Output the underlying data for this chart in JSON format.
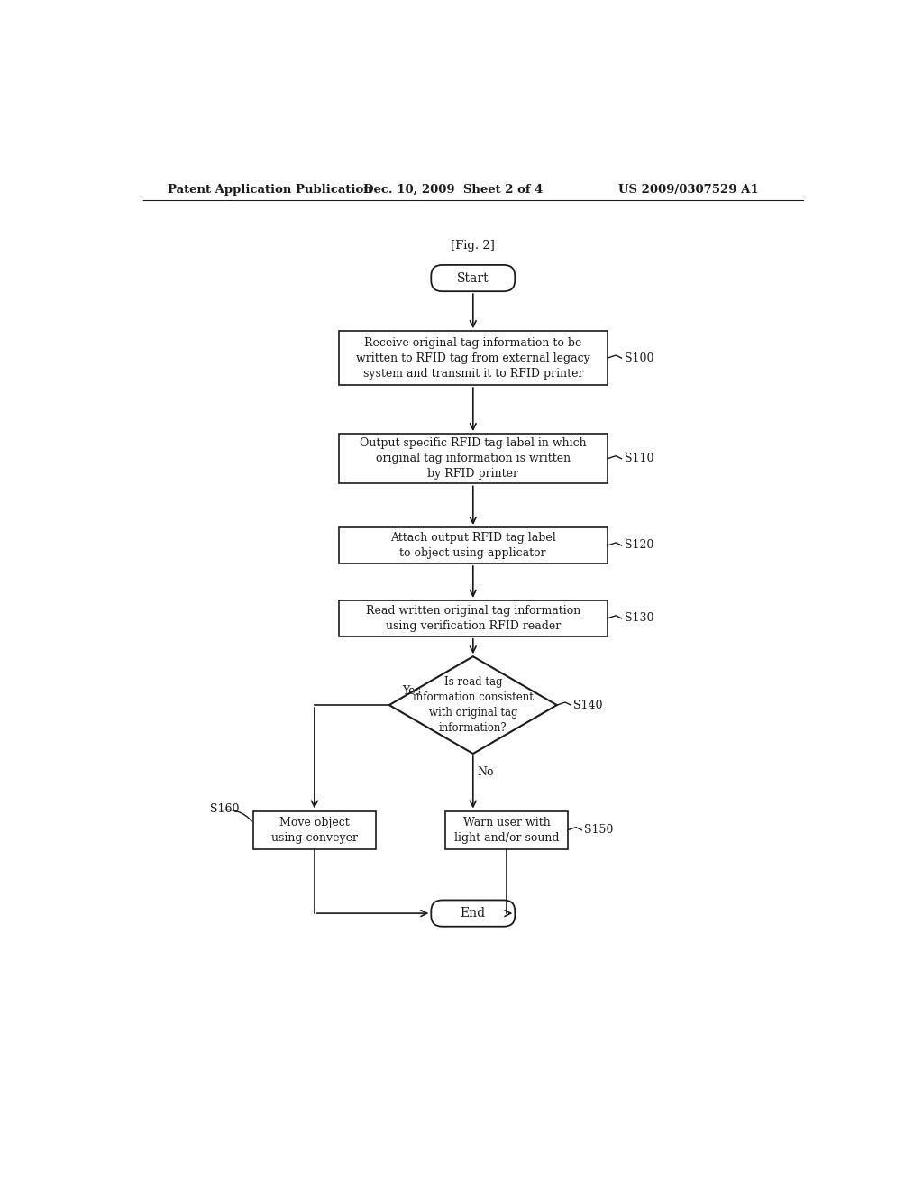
{
  "bg_color": "#ffffff",
  "header_left": "Patent Application Publication",
  "header_mid": "Dec. 10, 2009  Sheet 2 of 4",
  "header_right": "US 2009/0307529 A1",
  "fig_label": "[Fig. 2]",
  "s100_text": "Receive original tag information to be\nwritten to RFID tag from external legacy\nsystem and transmit it to RFID printer",
  "s100_step": "S100",
  "s110_text": "Output specific RFID tag label in which\noriginal tag information is written\nby RFID printer",
  "s110_step": "S110",
  "s120_text": "Attach output RFID tag label\nto object using applicator",
  "s120_step": "S120",
  "s130_text": "Read written original tag information\nusing verification RFID reader",
  "s130_step": "S130",
  "s140_text": "Is read tag\ninformation consistent\nwith original tag\ninformation?",
  "s140_step": "S140",
  "s150_text": "Warn user with\nlight and/or sound",
  "s150_step": "S150",
  "s160_text": "Move object\nusing conveyer",
  "s160_step": "S160",
  "start_text": "Start",
  "end_text": "End",
  "yes_text": "Yes",
  "no_text": "No",
  "line_color": "#1a1a1a",
  "text_color": "#1a1a1a",
  "font_size": 9.0,
  "header_font_size": 9.5
}
